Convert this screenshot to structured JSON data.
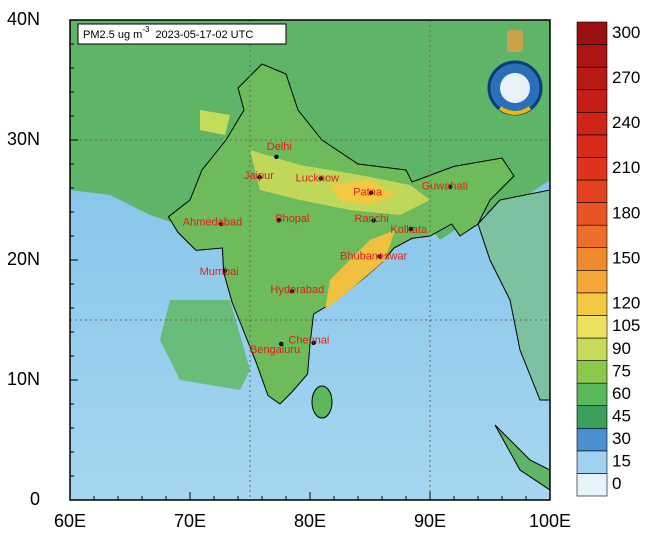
{
  "title": {
    "variable": "PM2.5 ug m",
    "exponent": "-3",
    "time": "2023-05-17-02 UTC"
  },
  "xticks": [
    {
      "value": 60,
      "label": "60E"
    },
    {
      "value": 70,
      "label": "70E"
    },
    {
      "value": 80,
      "label": "80E"
    },
    {
      "value": 90,
      "label": "90E"
    },
    {
      "value": 100,
      "label": "100E"
    }
  ],
  "yticks": [
    0,
    {
      "value": 10,
      "label": "10N"
    },
    {
      "value": 20,
      "label": "20N"
    },
    {
      "value": 30,
      "label": "30N"
    },
    {
      "value": 40,
      "label": "40N"
    }
  ],
  "cities": [
    "Delhi",
    "Jaipur",
    "Lucknow",
    "Patna",
    "Guwahati",
    "Ahmedabad",
    "Bhopal",
    "Ranchi",
    "Kolkata",
    "Bhubaneswar",
    "Mumbai",
    "Hyderabad",
    "Chennai",
    "Bengaluru"
  ],
  "colorbar": {
    "labels": [
      0,
      15,
      30,
      45,
      60,
      75,
      90,
      105,
      120,
      135,
      150,
      165,
      180,
      195,
      210,
      225,
      240,
      255,
      270,
      285,
      300
    ],
    "colors": [
      "#e6f3fa",
      "#9fd0ee",
      "#4a8fd0",
      "#3aa05a",
      "#5cb85c",
      "#8cc84b",
      "#c5dc5a",
      "#f0e060",
      "#f5c842",
      "#f4a636",
      "#f08a2c",
      "#ec6e28",
      "#e85524",
      "#e3421f",
      "#df321c",
      "#d82a1a",
      "#cf2418",
      "#c41e16",
      "#b81914",
      "#ab1512",
      "#9b1010"
    ],
    "shown_labels": [
      0,
      15,
      30,
      45,
      60,
      75,
      90,
      105,
      120,
      150,
      180,
      210,
      240,
      270,
      300
    ]
  }
}
